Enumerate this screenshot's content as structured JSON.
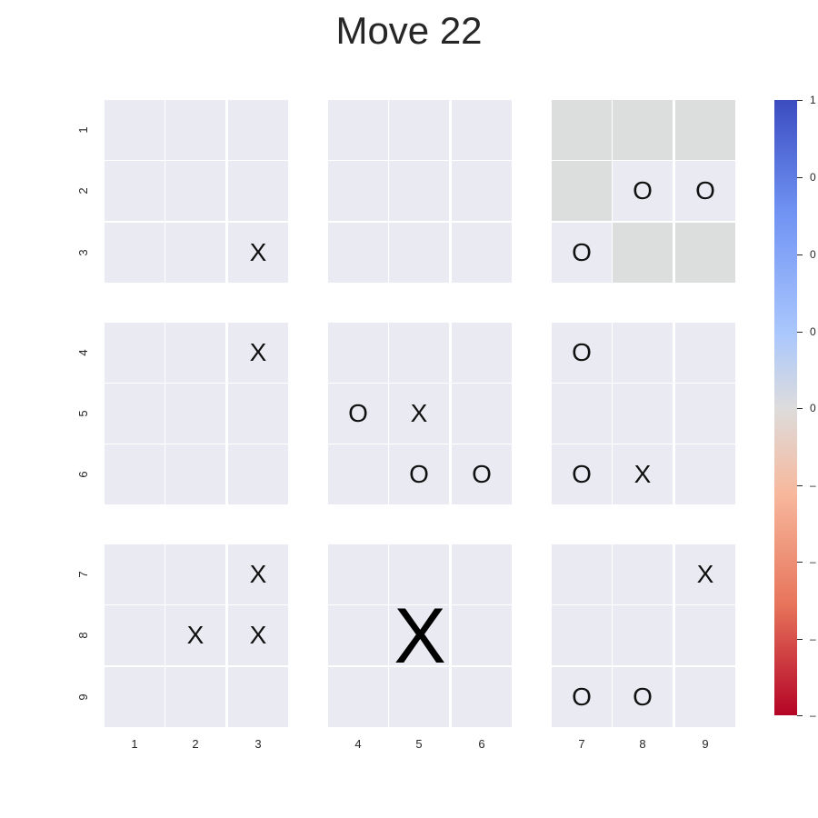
{
  "title": "Move 22",
  "board": {
    "rows": [
      [
        "",
        "",
        "",
        "",
        "",
        "",
        "",
        "",
        ""
      ],
      [
        "",
        "",
        "",
        "",
        "",
        "",
        "",
        "O",
        "O"
      ],
      [
        "",
        "",
        "X",
        "",
        "",
        "",
        "O",
        "",
        ""
      ],
      [
        "",
        "",
        "X",
        "",
        "",
        "",
        "O",
        "",
        ""
      ],
      [
        "",
        "",
        "",
        "O",
        "X",
        "",
        "",
        "",
        ""
      ],
      [
        "",
        "",
        "",
        "",
        "O",
        "O",
        "O",
        "X",
        ""
      ],
      [
        "",
        "",
        "X",
        "",
        "",
        "",
        "",
        "",
        "X"
      ],
      [
        "",
        "X",
        "X",
        "",
        "",
        "",
        "",
        "",
        ""
      ],
      [
        "",
        "",
        "",
        "",
        "",
        "",
        "O",
        "O",
        ""
      ]
    ],
    "highlighted_cells": [
      [
        0,
        6
      ],
      [
        0,
        7
      ],
      [
        0,
        8
      ],
      [
        1,
        6
      ],
      [
        2,
        7
      ],
      [
        2,
        8
      ]
    ],
    "won_subboards": [
      {
        "sub_row": 2,
        "sub_col": 1,
        "winner": "X"
      }
    ],
    "highlight_color": "#dcdddd",
    "cell_color": "#eaeaf2"
  },
  "row_labels": [
    "1",
    "2",
    "3",
    "4",
    "5",
    "6",
    "7",
    "8",
    "9"
  ],
  "col_labels": [
    "1",
    "2",
    "3",
    "4",
    "5",
    "6",
    "7",
    "8",
    "9"
  ],
  "colorbar": {
    "tick_labels": [
      "1",
      "0",
      "0",
      "0",
      "0",
      "–",
      "–",
      "–",
      "–"
    ],
    "top_color": "#3b4cc0",
    "mid_color": "#dddcdc",
    "bottom_color": "#b40426"
  }
}
